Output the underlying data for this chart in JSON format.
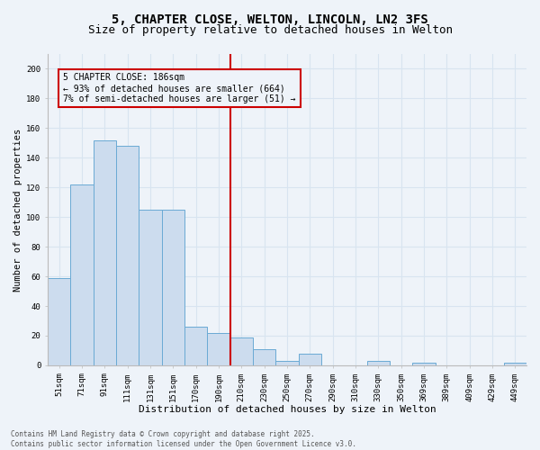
{
  "title": "5, CHAPTER CLOSE, WELTON, LINCOLN, LN2 3FS",
  "subtitle": "Size of property relative to detached houses in Welton",
  "xlabel": "Distribution of detached houses by size in Welton",
  "ylabel": "Number of detached properties",
  "categories": [
    "51sqm",
    "71sqm",
    "91sqm",
    "111sqm",
    "131sqm",
    "151sqm",
    "170sqm",
    "190sqm",
    "210sqm",
    "230sqm",
    "250sqm",
    "270sqm",
    "290sqm",
    "310sqm",
    "330sqm",
    "350sqm",
    "369sqm",
    "389sqm",
    "409sqm",
    "429sqm",
    "449sqm"
  ],
  "values": [
    59,
    122,
    152,
    148,
    105,
    105,
    26,
    22,
    19,
    11,
    3,
    8,
    0,
    0,
    3,
    0,
    2,
    0,
    0,
    0,
    2
  ],
  "bar_color": "#ccdcee",
  "bar_edge_color": "#6aaad4",
  "vline_x": 7.5,
  "vline_color": "#cc0000",
  "annotation_text": "5 CHAPTER CLOSE: 186sqm\n← 93% of detached houses are smaller (664)\n7% of semi-detached houses are larger (51) →",
  "annot_edge_color": "#cc0000",
  "annot_face_color": "#eef3f9",
  "bg_color": "#eef3f9",
  "grid_color": "#d8e4f0",
  "ylim": [
    0,
    210
  ],
  "yticks": [
    0,
    20,
    40,
    60,
    80,
    100,
    120,
    140,
    160,
    180,
    200
  ],
  "footnote": "Contains HM Land Registry data © Crown copyright and database right 2025.\nContains public sector information licensed under the Open Government Licence v3.0.",
  "title_fontsize": 10,
  "subtitle_fontsize": 9,
  "xlabel_fontsize": 8,
  "ylabel_fontsize": 7.5,
  "tick_fontsize": 6.5,
  "annot_fontsize": 7,
  "footnote_fontsize": 5.5
}
